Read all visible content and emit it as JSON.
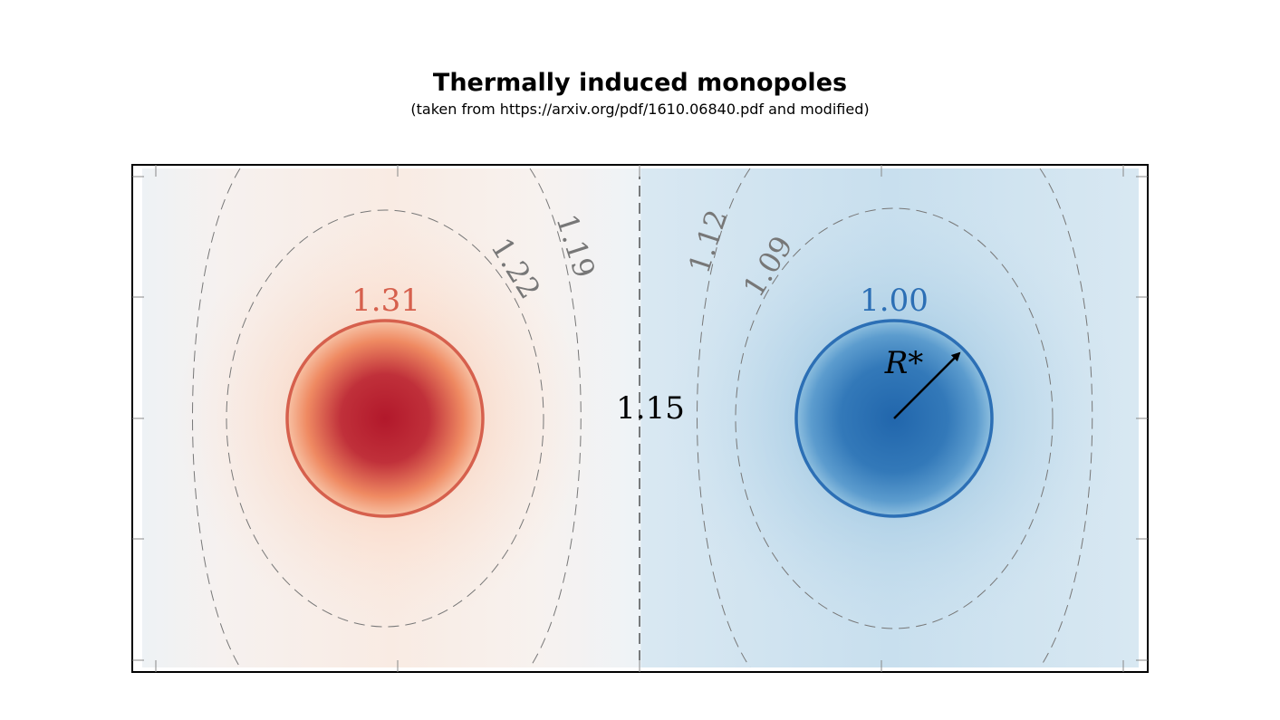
{
  "title": "Thermally induced monopoles",
  "subtitle": "(taken from https://arxiv.org/pdf/1610.06840.pdf and modified)",
  "monopoles": {
    "left": {
      "label": "1.31",
      "color": "#d6604d",
      "core_color": "#b2182b"
    },
    "right": {
      "label": "1.00",
      "color": "#2c6fb5",
      "core_color": "#2166ac"
    }
  },
  "contours": {
    "center_label": "1.15",
    "left_inner_label": "1.22",
    "left_outer_label": "1.19",
    "right_outer_label": "1.12",
    "right_inner_label": "1.09"
  },
  "radius_label": "R*",
  "colors": {
    "contour_dashed": "#777777",
    "frame": "#000000"
  }
}
